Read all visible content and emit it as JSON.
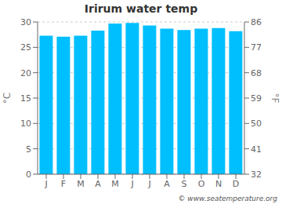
{
  "chart_data": {
    "type": "bar",
    "title": "Irirum water temp",
    "categories": [
      "J",
      "F",
      "M",
      "A",
      "M",
      "J",
      "J",
      "A",
      "S",
      "O",
      "N",
      "D"
    ],
    "values": [
      27.3,
      27.1,
      27.3,
      28.3,
      29.7,
      29.8,
      29.3,
      28.7,
      28.4,
      28.7,
      28.8,
      28.2
    ],
    "color": "#00bfff",
    "ylabel": "°C",
    "ylim": [
      0,
      30
    ],
    "yticks": [
      0,
      5,
      10,
      15,
      20,
      25,
      30
    ],
    "y2label": "°F",
    "y2lim": [
      32,
      86
    ],
    "y2ticks": [
      32,
      41,
      50,
      59,
      68,
      77,
      86
    ],
    "grid": true,
    "annotations": [
      "© www.seatemperature.org"
    ]
  }
}
